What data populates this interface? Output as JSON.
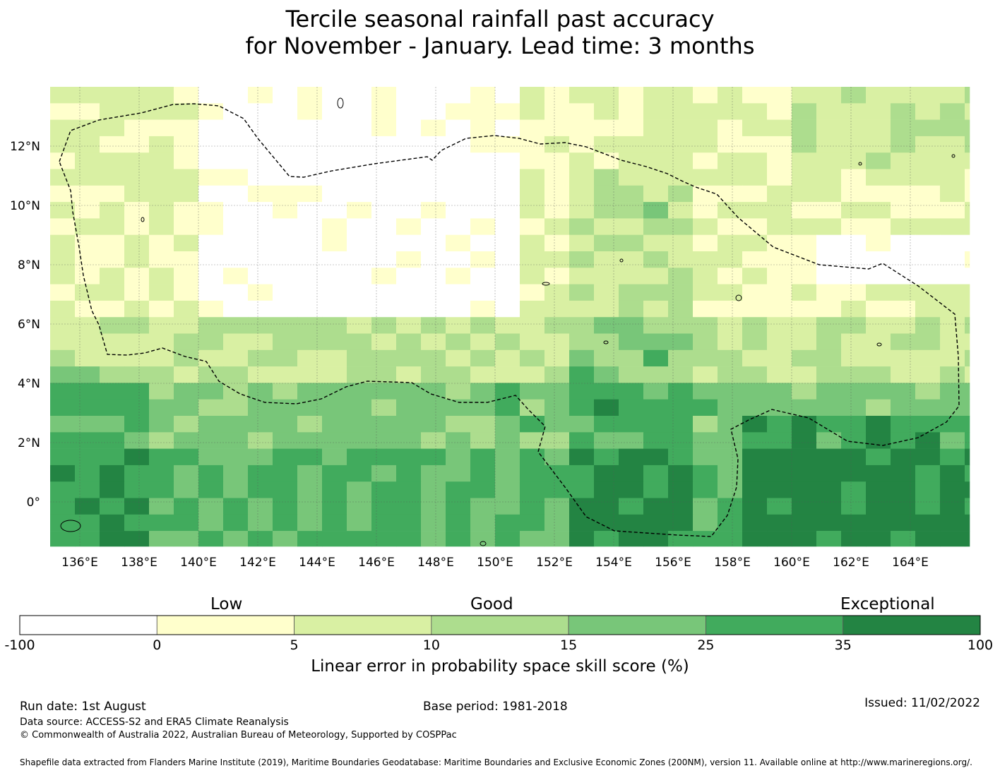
{
  "title_line1": "Tercile seasonal rainfall past accuracy",
  "title_line2": "for November - January. Lead time: 3 months",
  "map": {
    "lon_range": [
      135,
      166
    ],
    "lat_range": [
      -1.5,
      14
    ],
    "lon_ticks": [
      "136°E",
      "138°E",
      "140°E",
      "142°E",
      "144°E",
      "146°E",
      "148°E",
      "150°E",
      "152°E",
      "154°E",
      "156°E",
      "158°E",
      "160°E",
      "162°E",
      "164°E"
    ],
    "lat_ticks": [
      "12°N",
      "10°N",
      "8°N",
      "6°N",
      "4°N",
      "2°N",
      "0°"
    ],
    "grid": true
  },
  "legend": {
    "categories": [
      "Low",
      "Good",
      "Exceptional"
    ],
    "bin_labels": [
      "-100",
      "0",
      "5",
      "10",
      "15",
      "25",
      "35",
      "100"
    ],
    "bin_colors": [
      "#ffffff",
      "#ffffcc",
      "#d9f0a3",
      "#addd8e",
      "#78c679",
      "#41ab5d",
      "#238443"
    ],
    "axis_label": "Linear error in probability space skill score (%)"
  },
  "footer": {
    "run_date": "Run date: 1st August",
    "base_period": "Base period: 1981-2018",
    "issued": "Issued: 11/02/2022",
    "data_source": "Data source: ACCESS-S2 and ERA5 Climate Reanalysis",
    "copyright": "© Commonwealth of Australia 2022, Australian Bureau of Meteorology, Supported by COSPPac",
    "shapefile": "Shapefile data extracted from Flanders Marine Institute (2019), Maritime Boundaries Geodatabase: Maritime Boundaries and Exclusive Economic Zones (200NM), version 11. Available online at http://www.marineregions.org/."
  }
}
